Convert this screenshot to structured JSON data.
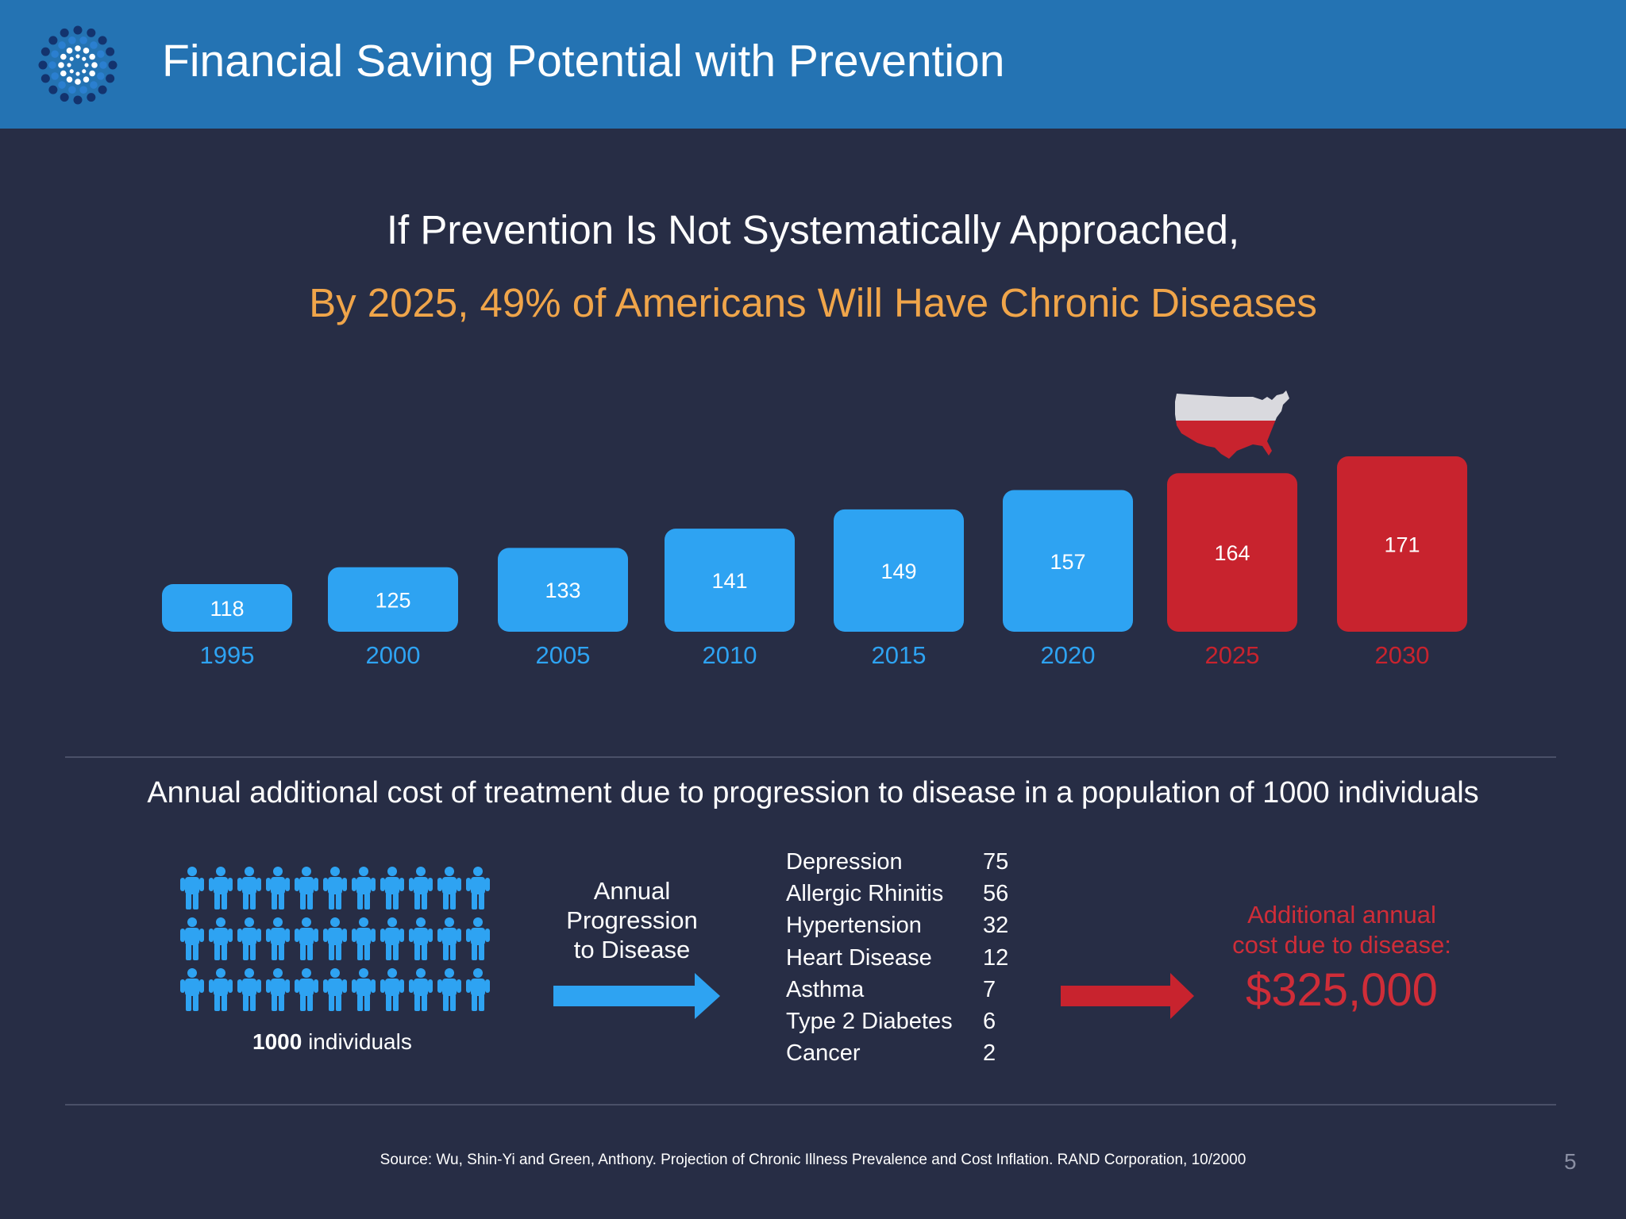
{
  "header": {
    "title": "Financial Saving Potential with Prevention"
  },
  "headline": {
    "line1": "If Prevention Is Not Systematically Approached,",
    "line2": "By 2025, 49% of Americans Will Have Chronic Diseases"
  },
  "chart_data": {
    "type": "bar",
    "title": "",
    "xlabel": "",
    "ylabel": "",
    "categories": [
      "1995",
      "2000",
      "2005",
      "2010",
      "2015",
      "2020",
      "2025",
      "2030"
    ],
    "values": [
      118,
      125,
      133,
      141,
      149,
      157,
      164,
      171
    ],
    "projected": [
      false,
      false,
      false,
      false,
      false,
      false,
      true,
      true
    ],
    "colors": {
      "actual": "#2ea3f2",
      "projected": "#c8232e"
    },
    "grid": false,
    "legend": "none"
  },
  "section": {
    "subtitle": "Annual additional cost of treatment due to progression to disease in a population of 1000 individuals"
  },
  "population": {
    "icon": "person-icon",
    "color": "#2ea3f2",
    "count_bold": "1000",
    "count_text": " individuals"
  },
  "progression": {
    "line1": "Annual",
    "line2": "Progression",
    "line3": "to Disease"
  },
  "diseases": [
    {
      "name": "Depression",
      "value": "75"
    },
    {
      "name": "Allergic Rhinitis",
      "value": "56"
    },
    {
      "name": "Hypertension",
      "value": "32"
    },
    {
      "name": "Heart Disease",
      "value": "12"
    },
    {
      "name": "Asthma",
      "value": "7"
    },
    {
      "name": "Type 2 Diabetes",
      "value": "6"
    },
    {
      "name": "Cancer",
      "value": "2"
    }
  ],
  "cost": {
    "label_line1": "Additional annual",
    "label_line2": "cost due to disease:",
    "value": "$325,000",
    "color": "#cf2d38"
  },
  "source": "Source: Wu, Shin-Yi and Green, Anthony. Projection of Chronic Illness Prevalence and Cost Inflation. RAND Corporation, 10/2000",
  "page_number": "5"
}
